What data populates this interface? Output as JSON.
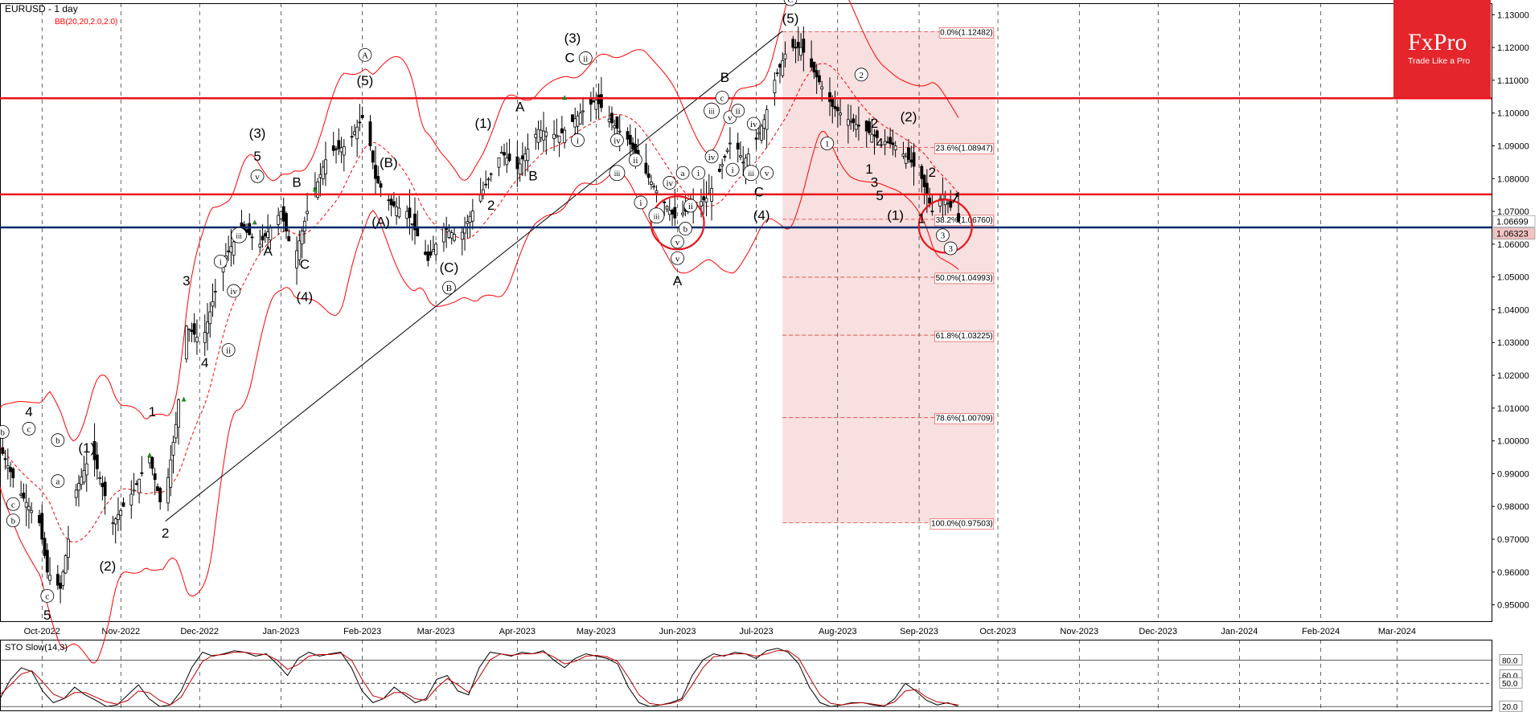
{
  "header": {
    "symbol_title": "EURUSD - 1 day",
    "indicator_label": "BB(20,20,2.0,2.0)",
    "oscillator_label": "STO Slow(14,3)"
  },
  "brand": {
    "name": "FxPro",
    "tagline": "Trade Like a Pro",
    "color": "#e4252b"
  },
  "colors": {
    "background": "#ffffff",
    "candle": "#000000",
    "bands": "#ff0000",
    "resistance": "#e8141b",
    "support": "#002a6b",
    "fib_zone": "#f5d5d5",
    "sto_main": "#000000",
    "sto_signal": "#c00000"
  },
  "chart_data": [
    {
      "type": "candlestick",
      "title": "EURUSD - 1 day",
      "y_scale": [
        0.945,
        1.1335
      ],
      "y_ticks": [
        "1.13000",
        "1.12000",
        "1.11000",
        "1.10000",
        "1.09000",
        "1.08000",
        "1.07000",
        "1.06000",
        "1.05000",
        "1.04000",
        "1.03000",
        "1.02000",
        "1.01000",
        "1.00000",
        "0.99000",
        "0.98000",
        "0.97000",
        "0.96000",
        "0.95000"
      ],
      "x_labels": [
        {
          "label": "Oct-2022",
          "day": 1
        },
        {
          "label": "Nov-2022",
          "day": 31
        },
        {
          "label": "Dec-2022",
          "day": 61
        },
        {
          "label": "Jan-2023",
          "day": 92
        },
        {
          "label": "Feb-2023",
          "day": 123
        },
        {
          "label": "Mar-2023",
          "day": 151
        },
        {
          "label": "Apr-2023",
          "day": 182
        },
        {
          "label": "May-2023",
          "day": 212
        },
        {
          "label": "Jun-2023",
          "day": 243
        },
        {
          "label": "Jul-2023",
          "day": 273
        },
        {
          "label": "Aug-2023",
          "day": 304
        },
        {
          "label": "Sep-2023",
          "day": 335
        },
        {
          "label": "Oct-2023",
          "day": 365
        },
        {
          "label": "Nov-2023",
          "day": 396
        },
        {
          "label": "Dec-2023",
          "day": 426
        },
        {
          "label": "Jan-2024",
          "day": 457
        },
        {
          "label": "Feb-2024",
          "day": 488
        },
        {
          "label": "Mar-2024",
          "day": 517
        }
      ],
      "day_range": [
        -15,
        553
      ],
      "price_path": [
        [
          -15,
          0.998
        ],
        [
          -8,
          0.985
        ],
        [
          0,
          0.975
        ],
        [
          3,
          0.96
        ],
        [
          8,
          0.955
        ],
        [
          14,
          0.985
        ],
        [
          20,
          0.997
        ],
        [
          28,
          0.975
        ],
        [
          36,
          0.985
        ],
        [
          42,
          0.995
        ],
        [
          47,
          0.978
        ],
        [
          52,
          1.005
        ],
        [
          56,
          1.035
        ],
        [
          62,
          1.03
        ],
        [
          70,
          1.055
        ],
        [
          77,
          1.065
        ],
        [
          84,
          1.06
        ],
        [
          92,
          1.07
        ],
        [
          97,
          1.055
        ],
        [
          102,
          1.07
        ],
        [
          110,
          1.088
        ],
        [
          117,
          1.09
        ],
        [
          124,
          1.1
        ],
        [
          128,
          1.08
        ],
        [
          134,
          1.072
        ],
        [
          140,
          1.07
        ],
        [
          148,
          1.055
        ],
        [
          154,
          1.065
        ],
        [
          160,
          1.062
        ],
        [
          168,
          1.075
        ],
        [
          176,
          1.088
        ],
        [
          182,
          1.083
        ],
        [
          190,
          1.095
        ],
        [
          198,
          1.093
        ],
        [
          206,
          1.1
        ],
        [
          212,
          1.104
        ],
        [
          218,
          1.097
        ],
        [
          224,
          1.092
        ],
        [
          230,
          1.083
        ],
        [
          236,
          1.075
        ],
        [
          242,
          1.068
        ],
        [
          248,
          1.071
        ],
        [
          254,
          1.074
        ],
        [
          258,
          1.08
        ],
        [
          264,
          1.093
        ],
        [
          268,
          1.085
        ],
        [
          272,
          1.09
        ],
        [
          276,
          1.098
        ],
        [
          280,
          1.11
        ],
        [
          285,
          1.12
        ],
        [
          290,
          1.12
        ],
        [
          296,
          1.111
        ],
        [
          302,
          1.102
        ],
        [
          308,
          1.098
        ],
        [
          314,
          1.095
        ],
        [
          320,
          1.092
        ],
        [
          326,
          1.09
        ],
        [
          332,
          1.085
        ],
        [
          336,
          1.08
        ],
        [
          340,
          1.07
        ],
        [
          344,
          1.075
        ],
        [
          348,
          1.07
        ],
        [
          350,
          1.067
        ]
      ],
      "candles_to_day": 350,
      "resistance_levels": [
        1.1045,
        1.0752
      ],
      "support_level": 1.0651,
      "price_tags": [
        {
          "price": 1.06699,
          "label": "1.06699"
        },
        {
          "price": 1.06323,
          "label": "1.06323"
        }
      ],
      "trendline": [
        [
          48,
          0.9755
        ],
        [
          283,
          1.125
        ]
      ],
      "fibonacci": {
        "start_day": 283,
        "end_day": 364,
        "levels": [
          {
            "price": 1.12482,
            "label": "0.0%(1.12482)"
          },
          {
            "price": 1.08947,
            "label": "23.6%(1.08947)"
          },
          {
            "price": 1.0676,
            "label": "38.2%(1.06760)"
          },
          {
            "price": 1.04993,
            "label": "50.0%(1.04993)"
          },
          {
            "price": 1.03225,
            "label": "61.8%(1.03225)"
          },
          {
            "price": 1.00709,
            "label": "78.6%(1.00709)"
          },
          {
            "price": 0.97503,
            "label": "100.0%(0.97503)"
          }
        ]
      },
      "highlight_circles": [
        {
          "day": 243,
          "price": 1.0665
        },
        {
          "day": 345,
          "price": 1.0655
        }
      ],
      "wave_labels": [
        {
          "t": "b",
          "d": -14,
          "p": 1.0015,
          "c": true
        },
        {
          "t": "4",
          "d": -4,
          "p": 1.0075
        },
        {
          "t": "c",
          "d": -4,
          "p": 1.0025,
          "c": true
        },
        {
          "t": "b",
          "d": 7,
          "p": 0.999,
          "c": true
        },
        {
          "t": "a",
          "d": 7,
          "p": 0.9865,
          "c": true
        },
        {
          "t": "c",
          "d": -10,
          "p": 0.9795,
          "c": true
        },
        {
          "t": "b",
          "d": -10,
          "p": 0.9745,
          "c": true
        },
        {
          "t": "(1)",
          "d": 18,
          "p": 0.9965
        },
        {
          "t": "(2)",
          "d": 26,
          "p": 0.9605
        },
        {
          "t": "c",
          "d": 3,
          "p": 0.9515,
          "c": true
        },
        {
          "t": "5",
          "d": 3,
          "p": 0.9455
        },
        {
          "t": "1",
          "d": 43,
          "p": 1.0075
        },
        {
          "t": "2",
          "d": 48,
          "p": 0.9705
        },
        {
          "t": "3",
          "d": 56,
          "p": 1.0475
        },
        {
          "t": "4",
          "d": 63,
          "p": 1.0225
        },
        {
          "t": "ii",
          "d": 72,
          "p": 1.0265,
          "c": true
        },
        {
          "t": "i",
          "d": 69,
          "p": 1.0535,
          "c": true
        },
        {
          "t": "iv",
          "d": 74,
          "p": 1.0445,
          "c": true
        },
        {
          "t": "iii",
          "d": 76,
          "p": 1.0615,
          "c": true
        },
        {
          "t": "(3)",
          "d": 83,
          "p": 1.0925
        },
        {
          "t": "5",
          "d": 83,
          "p": 1.0855
        },
        {
          "t": "v",
          "d": 83,
          "p": 1.0795,
          "c": true
        },
        {
          "t": "A",
          "d": 87,
          "p": 1.0565
        },
        {
          "t": "B",
          "d": 98,
          "p": 1.0775
        },
        {
          "t": "C",
          "d": 101,
          "p": 1.0525
        },
        {
          "t": "(4)",
          "d": 101,
          "p": 1.0425
        },
        {
          "t": "A",
          "d": 124,
          "p": 1.1165,
          "c": true
        },
        {
          "t": "(5)",
          "d": 124,
          "p": 1.1085
        },
        {
          "t": "(B)",
          "d": 133,
          "p": 1.0835
        },
        {
          "t": "(A)",
          "d": 130,
          "p": 1.0655
        },
        {
          "t": "(C)",
          "d": 156,
          "p": 1.0515
        },
        {
          "t": "B",
          "d": 156,
          "p": 1.0455,
          "c": true
        },
        {
          "t": "2",
          "d": 172,
          "p": 1.0705
        },
        {
          "t": "(1)",
          "d": 169,
          "p": 1.0955
        },
        {
          "t": "A",
          "d": 183,
          "p": 1.1005
        },
        {
          "t": "B",
          "d": 188,
          "p": 1.0795
        },
        {
          "t": "(3)",
          "d": 203,
          "p": 1.1215
        },
        {
          "t": "C",
          "d": 202,
          "p": 1.1155
        },
        {
          "t": "ii",
          "d": 208,
          "p": 1.1155,
          "c": true
        },
        {
          "t": "i",
          "d": 205,
          "p": 1.0905,
          "c": true
        },
        {
          "t": "iv",
          "d": 220,
          "p": 1.0905,
          "c": true
        },
        {
          "t": "ii",
          "d": 227,
          "p": 1.0845,
          "c": true
        },
        {
          "t": "iii",
          "d": 220,
          "p": 1.0805,
          "c": true
        },
        {
          "t": "i",
          "d": 229,
          "p": 1.0715,
          "c": true
        },
        {
          "t": "iv",
          "d": 240,
          "p": 1.0775,
          "c": true
        },
        {
          "t": "a",
          "d": 245,
          "p": 1.0805,
          "c": true
        },
        {
          "t": "i",
          "d": 251,
          "p": 1.0805,
          "c": true
        },
        {
          "t": "ii",
          "d": 248,
          "p": 1.0705,
          "c": true
        },
        {
          "t": "iii",
          "d": 235,
          "p": 1.0675,
          "c": true
        },
        {
          "t": "b",
          "d": 246,
          "p": 1.0635,
          "c": true
        },
        {
          "t": "v",
          "d": 243,
          "p": 1.0595,
          "c": true
        },
        {
          "t": "v",
          "d": 243,
          "p": 1.0545,
          "c": true
        },
        {
          "t": "A",
          "d": 243,
          "p": 1.0475
        },
        {
          "t": "B",
          "d": 261,
          "p": 1.1095
        },
        {
          "t": "c",
          "d": 260,
          "p": 1.1035,
          "c": true
        },
        {
          "t": "v",
          "d": 263,
          "p": 1.0975,
          "c": true
        },
        {
          "t": "iii",
          "d": 256,
          "p": 1.0995,
          "c": true
        },
        {
          "t": "ii",
          "d": 266,
          "p": 1.0995,
          "c": true
        },
        {
          "t": "iv",
          "d": 272,
          "p": 1.0955,
          "c": true
        },
        {
          "t": "iv",
          "d": 256,
          "p": 1.0855,
          "c": true
        },
        {
          "t": "i",
          "d": 264,
          "p": 1.0815,
          "c": true
        },
        {
          "t": "iii",
          "d": 271,
          "p": 1.0805,
          "c": true
        },
        {
          "t": "v",
          "d": 277,
          "p": 1.0805,
          "c": true
        },
        {
          "t": "C",
          "d": 274,
          "p": 1.0745
        },
        {
          "t": "(4)",
          "d": 275,
          "p": 1.0675
        },
        {
          "t": "C",
          "d": 286,
          "p": 1.1335,
          "c": true
        },
        {
          "t": "(5)",
          "d": 286,
          "p": 1.1275
        },
        {
          "t": "2",
          "d": 313,
          "p": 1.1105,
          "c": true
        },
        {
          "t": "1",
          "d": 300,
          "p": 1.0895,
          "c": true
        },
        {
          "t": "2",
          "d": 318,
          "p": 1.0955
        },
        {
          "t": "(2)",
          "d": 331,
          "p": 1.0975
        },
        {
          "t": "4",
          "d": 320,
          "p": 1.0895
        },
        {
          "t": "1",
          "d": 316,
          "p": 1.0815
        },
        {
          "t": "3",
          "d": 318,
          "p": 1.0775
        },
        {
          "t": "5",
          "d": 320,
          "p": 1.0735
        },
        {
          "t": "2",
          "d": 340,
          "p": 1.0805
        },
        {
          "t": "(1)",
          "d": 326,
          "p": 1.0675
        },
        {
          "t": "1",
          "d": 336,
          "p": 1.0665
        },
        {
          "t": "3",
          "d": 344,
          "p": 1.0615,
          "c": true
        },
        {
          "t": "3",
          "d": 347,
          "p": 1.0575,
          "c": true
        }
      ],
      "green_arrows": [
        [
          42,
          0.9955
        ],
        [
          55,
          1.0125
        ],
        [
          82,
          1.0665
        ],
        [
          105,
          1.0765
        ],
        [
          200,
          1.1045
        ],
        [
          256,
          1.0865
        ],
        [
          262,
          1.0985
        ]
      ]
    },
    {
      "type": "line",
      "title": "STO Slow(14,3)",
      "y_ticks": [
        "80.0",
        "60.0",
        "50.0",
        "20.0"
      ],
      "ylim": [
        15,
        100
      ],
      "series": [
        {
          "values": [
            30,
            55,
            70,
            65,
            40,
            25,
            30,
            45,
            35,
            28,
            20,
            22,
            35,
            48,
            30,
            20,
            22,
            40,
            70,
            90,
            85,
            88,
            92,
            90,
            85,
            88,
            75,
            60,
            82,
            90,
            85,
            88,
            90,
            70,
            40,
            25,
            30,
            45,
            35,
            25,
            30,
            55,
            60,
            40,
            35,
            70,
            90,
            88,
            85,
            90,
            88,
            92,
            80,
            70,
            82,
            88,
            85,
            82,
            75,
            45,
            25,
            20,
            22,
            25,
            30,
            60,
            80,
            88,
            85,
            90,
            88,
            82,
            92,
            95,
            90,
            75,
            45,
            25,
            20,
            22,
            25,
            25,
            22,
            20,
            30,
            50,
            40,
            28,
            22,
            25,
            20
          ]
        },
        {
          "values": [
            35,
            48,
            62,
            66,
            52,
            36,
            30,
            38,
            38,
            32,
            26,
            23,
            28,
            40,
            38,
            28,
            22,
            32,
            55,
            78,
            86,
            87,
            90,
            90,
            88,
            87,
            80,
            68,
            74,
            85,
            87,
            87,
            89,
            80,
            55,
            34,
            30,
            38,
            38,
            30,
            28,
            44,
            56,
            48,
            38,
            58,
            80,
            88,
            86,
            88,
            88,
            90,
            84,
            75,
            78,
            85,
            86,
            84,
            78,
            58,
            35,
            24,
            22,
            24,
            28,
            48,
            70,
            84,
            86,
            88,
            88,
            85,
            88,
            92,
            92,
            82,
            58,
            35,
            24,
            22,
            24,
            25,
            23,
            21,
            26,
            40,
            42,
            32,
            26,
            24,
            22
          ]
        }
      ]
    }
  ]
}
